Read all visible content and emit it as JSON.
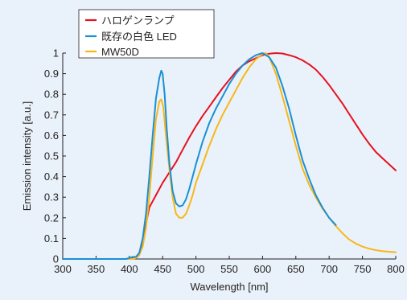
{
  "chart_data": {
    "type": "line",
    "title": "",
    "xlabel": "Wavelength [nm]",
    "ylabel": "Emission intensity [a.u.]",
    "xlim": [
      300,
      800
    ],
    "ylim": [
      0,
      1
    ],
    "x_ticks": [
      "300",
      "350",
      "400",
      "450",
      "500",
      "550",
      "600",
      "650",
      "700",
      "750",
      "800"
    ],
    "y_ticks": [
      "0",
      "0.1",
      "0.2",
      "0.3",
      "0.4",
      "0.5",
      "0.6",
      "0.7",
      "0.8",
      "0.9",
      "1"
    ],
    "grid": false,
    "legend_position": "top-left",
    "series": [
      {
        "name": "ハロゲンランプ",
        "color": "#e8101e",
        "points": [
          [
            300,
            0
          ],
          [
            400,
            0
          ],
          [
            410,
            0.005
          ],
          [
            415,
            0.02
          ],
          [
            420,
            0.08
          ],
          [
            425,
            0.17
          ],
          [
            430,
            0.25
          ],
          [
            440,
            0.31
          ],
          [
            450,
            0.37
          ],
          [
            460,
            0.42
          ],
          [
            470,
            0.47
          ],
          [
            480,
            0.53
          ],
          [
            490,
            0.59
          ],
          [
            500,
            0.645
          ],
          [
            510,
            0.695
          ],
          [
            520,
            0.74
          ],
          [
            530,
            0.785
          ],
          [
            540,
            0.83
          ],
          [
            550,
            0.87
          ],
          [
            560,
            0.91
          ],
          [
            570,
            0.94
          ],
          [
            580,
            0.96
          ],
          [
            590,
            0.975
          ],
          [
            600,
            0.99
          ],
          [
            610,
            0.997
          ],
          [
            620,
            1.0
          ],
          [
            630,
            0.998
          ],
          [
            640,
            0.99
          ],
          [
            650,
            0.98
          ],
          [
            660,
            0.965
          ],
          [
            670,
            0.945
          ],
          [
            680,
            0.92
          ],
          [
            690,
            0.885
          ],
          [
            700,
            0.845
          ],
          [
            710,
            0.8
          ],
          [
            720,
            0.755
          ],
          [
            730,
            0.705
          ],
          [
            740,
            0.655
          ],
          [
            750,
            0.605
          ],
          [
            760,
            0.56
          ],
          [
            770,
            0.52
          ],
          [
            780,
            0.49
          ],
          [
            790,
            0.46
          ],
          [
            800,
            0.43
          ]
        ]
      },
      {
        "name": "既存の白色 LED",
        "color": "#1b8fd4",
        "points": [
          [
            300,
            0
          ],
          [
            395,
            0
          ],
          [
            400,
            0.005
          ],
          [
            405,
            0.01
          ],
          [
            410,
            0.01
          ],
          [
            415,
            0.03
          ],
          [
            420,
            0.1
          ],
          [
            425,
            0.22
          ],
          [
            430,
            0.4
          ],
          [
            435,
            0.6
          ],
          [
            440,
            0.78
          ],
          [
            445,
            0.88
          ],
          [
            448,
            0.915
          ],
          [
            450,
            0.9
          ],
          [
            453,
            0.8
          ],
          [
            456,
            0.64
          ],
          [
            460,
            0.47
          ],
          [
            465,
            0.33
          ],
          [
            470,
            0.27
          ],
          [
            475,
            0.255
          ],
          [
            480,
            0.26
          ],
          [
            485,
            0.29
          ],
          [
            490,
            0.34
          ],
          [
            495,
            0.4
          ],
          [
            500,
            0.46
          ],
          [
            510,
            0.57
          ],
          [
            520,
            0.66
          ],
          [
            530,
            0.73
          ],
          [
            540,
            0.79
          ],
          [
            550,
            0.85
          ],
          [
            560,
            0.9
          ],
          [
            570,
            0.94
          ],
          [
            580,
            0.97
          ],
          [
            590,
            0.99
          ],
          [
            600,
            1.0
          ],
          [
            610,
            0.98
          ],
          [
            620,
            0.93
          ],
          [
            630,
            0.84
          ],
          [
            640,
            0.73
          ],
          [
            650,
            0.6
          ],
          [
            660,
            0.48
          ],
          [
            670,
            0.39
          ],
          [
            680,
            0.31
          ],
          [
            690,
            0.25
          ],
          [
            700,
            0.2
          ],
          [
            710,
            0.165
          ]
        ]
      },
      {
        "name": "MW50D",
        "color": "#f7b719",
        "points": [
          [
            300,
            0
          ],
          [
            405,
            0
          ],
          [
            410,
            0.005
          ],
          [
            415,
            0.02
          ],
          [
            420,
            0.06
          ],
          [
            425,
            0.15
          ],
          [
            430,
            0.3
          ],
          [
            435,
            0.5
          ],
          [
            440,
            0.68
          ],
          [
            445,
            0.765
          ],
          [
            448,
            0.775
          ],
          [
            451,
            0.74
          ],
          [
            455,
            0.6
          ],
          [
            460,
            0.44
          ],
          [
            465,
            0.3
          ],
          [
            470,
            0.22
          ],
          [
            475,
            0.2
          ],
          [
            480,
            0.2
          ],
          [
            485,
            0.22
          ],
          [
            490,
            0.26
          ],
          [
            495,
            0.31
          ],
          [
            500,
            0.37
          ],
          [
            510,
            0.46
          ],
          [
            520,
            0.55
          ],
          [
            530,
            0.63
          ],
          [
            540,
            0.7
          ],
          [
            550,
            0.76
          ],
          [
            560,
            0.82
          ],
          [
            570,
            0.88
          ],
          [
            580,
            0.93
          ],
          [
            590,
            0.97
          ],
          [
            600,
            0.995
          ],
          [
            605,
            1.0
          ],
          [
            610,
            0.98
          ],
          [
            620,
            0.9
          ],
          [
            630,
            0.79
          ],
          [
            640,
            0.67
          ],
          [
            650,
            0.55
          ],
          [
            660,
            0.44
          ],
          [
            670,
            0.36
          ],
          [
            680,
            0.3
          ],
          [
            690,
            0.245
          ],
          [
            700,
            0.2
          ],
          [
            710,
            0.16
          ],
          [
            720,
            0.125
          ],
          [
            730,
            0.095
          ],
          [
            740,
            0.075
          ],
          [
            750,
            0.06
          ],
          [
            760,
            0.05
          ],
          [
            770,
            0.043
          ],
          [
            780,
            0.038
          ],
          [
            790,
            0.035
          ],
          [
            800,
            0.033
          ]
        ]
      }
    ]
  }
}
